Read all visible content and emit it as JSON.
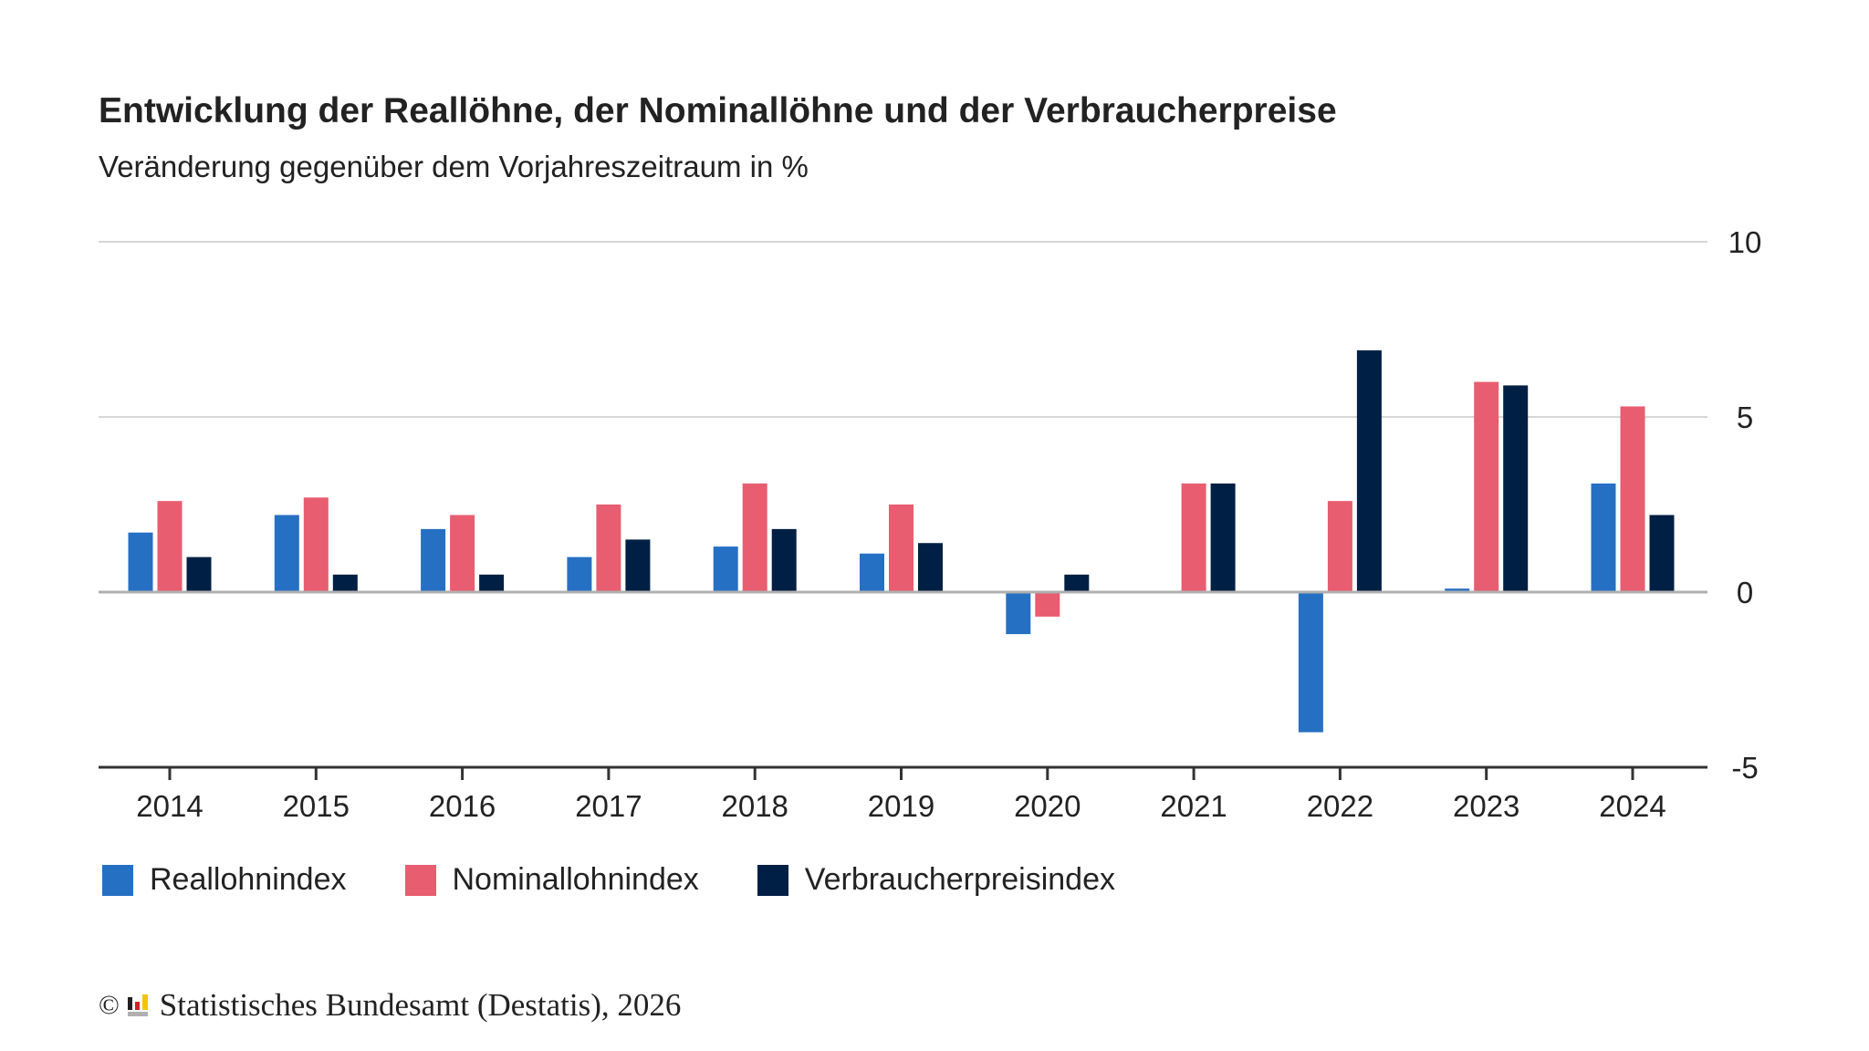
{
  "chart_data": {
    "type": "bar",
    "title": "Entwicklung der Reallöhne, der Nominallöhne und der Verbraucherpreise",
    "subtitle": "Veränderung gegenüber dem Vorjahreszeitraum in %",
    "categories": [
      "2014",
      "2015",
      "2016",
      "2017",
      "2018",
      "2019",
      "2020",
      "2021",
      "2022",
      "2023",
      "2024"
    ],
    "series": [
      {
        "name": "Reallohnindex",
        "color": "#2670c4",
        "values": [
          1.7,
          2.2,
          1.8,
          1.0,
          1.3,
          1.1,
          -1.2,
          0.0,
          -4.0,
          0.1,
          3.1
        ]
      },
      {
        "name": "Nominallohnindex",
        "color": "#e85d70",
        "values": [
          2.6,
          2.7,
          2.2,
          2.5,
          3.1,
          2.5,
          -0.7,
          3.1,
          2.6,
          6.0,
          5.3
        ]
      },
      {
        "name": "Verbraucherpreisindex",
        "color": "#001f44",
        "values": [
          1.0,
          0.5,
          0.5,
          1.5,
          1.8,
          1.4,
          0.5,
          3.1,
          6.9,
          5.9,
          2.2
        ]
      }
    ],
    "ylim": [
      -5,
      10
    ],
    "yticks": [
      "10",
      "5",
      "0",
      "-5"
    ],
    "ytick_values": [
      10,
      5,
      0,
      -5
    ],
    "grid": true,
    "legend": "bottom-left",
    "xlabel": "",
    "ylabel": ""
  },
  "footer": {
    "copyright": "©",
    "text": "Statistisches Bundesamt (Destatis), 2026"
  }
}
